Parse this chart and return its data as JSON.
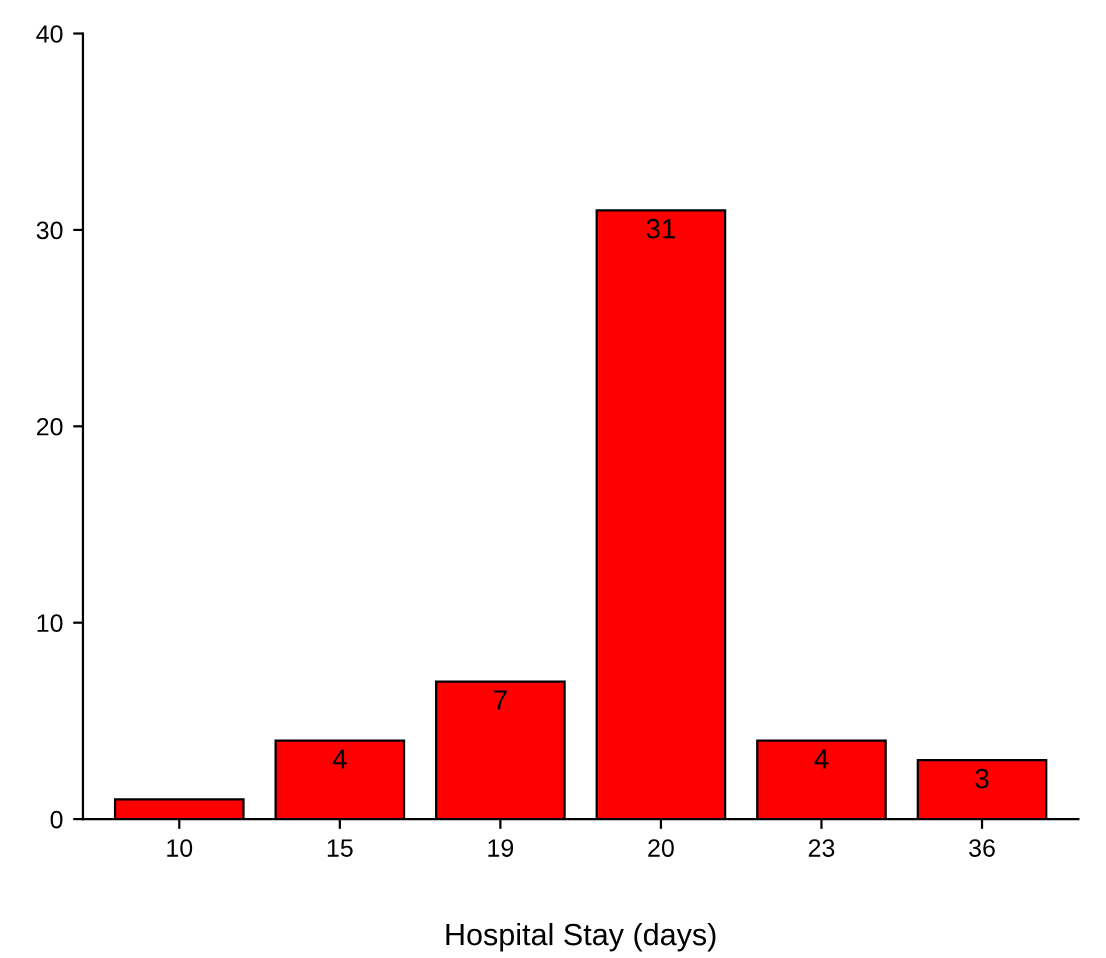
{
  "chart_data": {
    "type": "bar",
    "xlabel": "Hospital Stay (days)",
    "categories": [
      "10",
      "15",
      "19",
      "20",
      "23",
      "36"
    ],
    "values": [
      1,
      4,
      7,
      31,
      4,
      3
    ],
    "value_labels": [
      null,
      "4",
      "7",
      "31",
      "4",
      "3"
    ],
    "color": "#ff0000",
    "ylim": [
      0,
      40
    ],
    "yticks": [
      0,
      10,
      20,
      30,
      40
    ],
    "grid": false,
    "legend": false
  }
}
